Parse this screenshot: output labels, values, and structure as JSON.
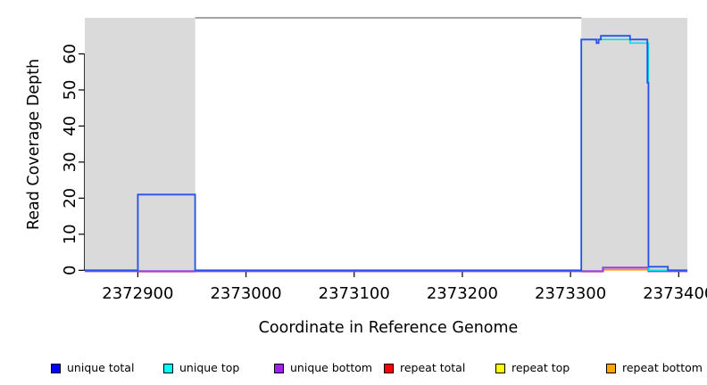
{
  "figure": {
    "type_hint": "read coverage depth plot (R-style)"
  },
  "chart_data": {
    "type": "line",
    "title": "",
    "xlabel": "Coordinate in Reference Genome",
    "ylabel": "Read Coverage Depth",
    "x_domain": [
      2372851,
      2373408
    ],
    "y_domain": [
      0,
      70
    ],
    "x_ticks": [
      {
        "value": 2372900,
        "label": "2372900"
      },
      {
        "value": 2373000,
        "label": "2373000"
      },
      {
        "value": 2373100,
        "label": "2373100"
      },
      {
        "value": 2373200,
        "label": "2373200"
      },
      {
        "value": 2373300,
        "label": "2373300"
      },
      {
        "value": 2373400,
        "label": "2373400"
      }
    ],
    "y_ticks": [
      {
        "value": 0,
        "label": "0"
      },
      {
        "value": 10,
        "label": "10"
      },
      {
        "value": 20,
        "label": "20"
      },
      {
        "value": 30,
        "label": "30"
      },
      {
        "value": 40,
        "label": "40"
      },
      {
        "value": 50,
        "label": "50"
      },
      {
        "value": 60,
        "label": "60"
      }
    ],
    "shaded_regions": [
      {
        "x1": 2372851,
        "x2": 2372953,
        "color": "#DADADA",
        "meaning": "masked/repeat region"
      },
      {
        "x1": 2373310,
        "x2": 2373408,
        "color": "#DADADA",
        "meaning": "masked/repeat region"
      }
    ],
    "top_border": {
      "x1": 2372953,
      "x2": 2373310,
      "color": "#6E6E6E"
    },
    "series": [
      {
        "id": "repeat-total",
        "name": "repeat total",
        "line_color": "#F04055",
        "segments": [
          [
            [
              2372900,
              0
            ],
            [
              2372953,
              0
            ]
          ],
          [
            [
              2373310,
              0
            ],
            [
              2373330,
              0
            ]
          ]
        ]
      },
      {
        "id": "repeat-top",
        "name": "repeat top",
        "line_color": "#7FDB9A",
        "segments": [
          [
            [
              2373372,
              0
            ],
            [
              2373390,
              0
            ]
          ]
        ]
      },
      {
        "id": "repeat-bottom",
        "name": "repeat bottom",
        "line_color": "#FF9912",
        "segments": [
          [
            [
              2373330,
              0.3
            ],
            [
              2373372,
              0.3
            ]
          ]
        ]
      },
      {
        "id": "unique-bottom",
        "name": "unique bottom",
        "line_color": "#9B40D8",
        "segments": [
          [
            [
              2372851,
              0
            ],
            [
              2373330,
              0
            ],
            [
              2373330,
              1
            ],
            [
              2373372,
              1
            ],
            [
              2373372,
              0
            ],
            [
              2373408,
              0
            ]
          ]
        ]
      },
      {
        "id": "unique-top",
        "name": "unique top",
        "line_color": "#00E0E8",
        "segments": [
          [
            [
              2372851,
              0
            ],
            [
              2372900,
              0
            ],
            [
              2372900,
              21
            ],
            [
              2372953,
              21
            ],
            [
              2372953,
              0
            ],
            [
              2373310,
              0
            ],
            [
              2373310,
              64
            ],
            [
              2373355,
              64
            ],
            [
              2373355,
              63
            ],
            [
              2373372,
              63
            ],
            [
              2373372,
              0
            ],
            [
              2373408,
              0
            ]
          ]
        ]
      },
      {
        "id": "unique-total",
        "name": "unique total",
        "line_color": "#2B50E8",
        "segments": [
          [
            [
              2372851,
              0
            ],
            [
              2372900,
              0
            ],
            [
              2372900,
              21
            ],
            [
              2372953,
              21
            ],
            [
              2372953,
              0
            ],
            [
              2373310,
              0
            ],
            [
              2373310,
              64
            ],
            [
              2373324,
              64
            ],
            [
              2373324,
              63
            ],
            [
              2373326,
              63
            ],
            [
              2373326,
              64
            ],
            [
              2373328,
              64
            ],
            [
              2373328,
              65
            ],
            [
              2373355,
              65
            ],
            [
              2373355,
              64
            ],
            [
              2373371,
              64
            ],
            [
              2373371,
              52
            ],
            [
              2373372,
              52
            ],
            [
              2373372,
              1
            ],
            [
              2373390,
              1
            ],
            [
              2373390,
              0
            ],
            [
              2373408,
              0
            ]
          ]
        ]
      }
    ]
  },
  "legend": {
    "items": [
      {
        "label": "unique total",
        "color": "#0000FF"
      },
      {
        "label": "unique top",
        "color": "#00FFFF"
      },
      {
        "label": "unique bottom",
        "color": "#A020F0"
      },
      {
        "label": "repeat total",
        "color": "#FF0000"
      },
      {
        "label": "repeat top",
        "color": "#FFFF00"
      },
      {
        "label": "repeat bottom",
        "color": "#FFA500"
      }
    ]
  }
}
